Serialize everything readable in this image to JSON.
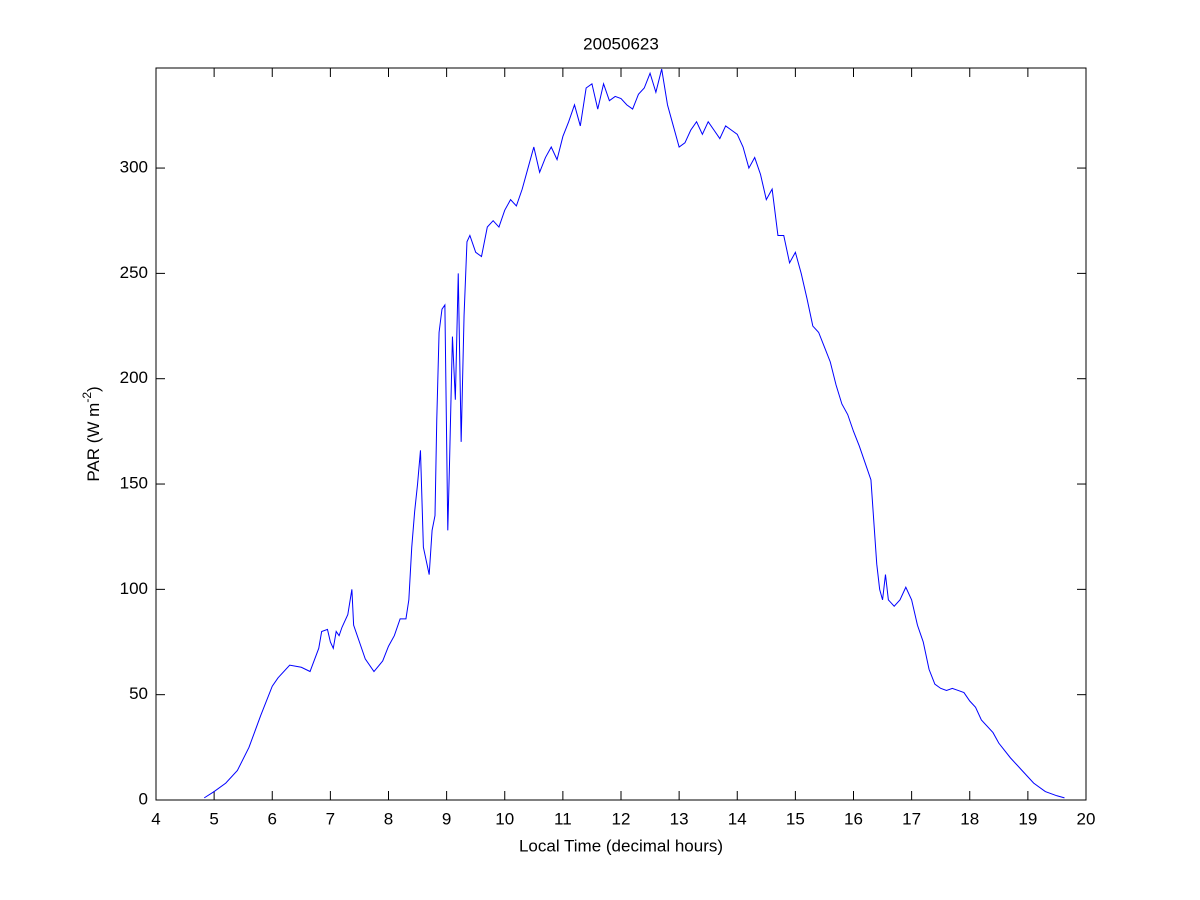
{
  "chart_data": {
    "type": "line",
    "title": "20050623",
    "x_label": "Local Time (decimal hours)",
    "y_label": [
      "PAR (W m",
      "-2",
      ")"
    ],
    "xlim": [
      4,
      20
    ],
    "xticks": [
      4,
      5,
      6,
      7,
      8,
      9,
      10,
      11,
      12,
      13,
      14,
      15,
      16,
      17,
      18,
      19,
      20
    ],
    "ylim": [
      0,
      347.5
    ],
    "yticks": [
      0,
      50,
      100,
      150,
      200,
      250,
      300
    ],
    "grid": false,
    "series": [
      {
        "color": "#0000ff",
        "x": [
          4.83,
          5.0,
          5.2,
          5.4,
          5.6,
          5.8,
          6.0,
          6.1,
          6.3,
          6.5,
          6.65,
          6.8,
          6.85,
          6.95,
          7.0,
          7.05,
          7.1,
          7.15,
          7.2,
          7.3,
          7.37,
          7.4,
          7.5,
          7.6,
          7.75,
          7.9,
          8.0,
          8.1,
          8.2,
          8.3,
          8.35,
          8.4,
          8.45,
          8.5,
          8.55,
          8.6,
          8.7,
          8.75,
          8.8,
          8.83,
          8.87,
          8.92,
          8.97,
          9.02,
          9.05,
          9.1,
          9.15,
          9.2,
          9.25,
          9.3,
          9.35,
          9.4,
          9.5,
          9.6,
          9.7,
          9.8,
          9.9,
          10.0,
          10.1,
          10.2,
          10.3,
          10.4,
          10.5,
          10.6,
          10.7,
          10.8,
          10.9,
          11.0,
          11.1,
          11.2,
          11.3,
          11.4,
          11.5,
          11.6,
          11.7,
          11.8,
          11.9,
          12.0,
          12.1,
          12.2,
          12.3,
          12.4,
          12.5,
          12.6,
          12.7,
          12.8,
          12.9,
          13.0,
          13.1,
          13.2,
          13.3,
          13.4,
          13.5,
          13.6,
          13.7,
          13.8,
          13.9,
          14.0,
          14.1,
          14.2,
          14.3,
          14.4,
          14.5,
          14.6,
          14.7,
          14.8,
          14.9,
          15.0,
          15.1,
          15.2,
          15.3,
          15.4,
          15.5,
          15.6,
          15.7,
          15.8,
          15.9,
          16.0,
          16.1,
          16.2,
          16.3,
          16.4,
          16.45,
          16.5,
          16.55,
          16.6,
          16.7,
          16.8,
          16.9,
          17.0,
          17.1,
          17.2,
          17.3,
          17.4,
          17.5,
          17.6,
          17.7,
          17.8,
          17.9,
          18.0,
          18.1,
          18.2,
          18.4,
          18.5,
          18.7,
          18.9,
          19.1,
          19.3,
          19.5,
          19.63
        ],
        "values": [
          1,
          4,
          8,
          14,
          25,
          40,
          54,
          58,
          64,
          63,
          61,
          72,
          80,
          81,
          75,
          72,
          80,
          78,
          82,
          88,
          100,
          83,
          75,
          67,
          61,
          66,
          73,
          78,
          86,
          86,
          95,
          120,
          137,
          150,
          166,
          120,
          107,
          128,
          135,
          180,
          222,
          233,
          235,
          128,
          160,
          220,
          190,
          250,
          170,
          230,
          265,
          268,
          260,
          258,
          272,
          275,
          272,
          280,
          285,
          282,
          290,
          300,
          310,
          298,
          305,
          310,
          304,
          315,
          322,
          330,
          320,
          338,
          340,
          328,
          340,
          332,
          334,
          333,
          330,
          328,
          335,
          338,
          345,
          336,
          347,
          330,
          320,
          310,
          312,
          318,
          322,
          316,
          322,
          318,
          314,
          320,
          318,
          316,
          310,
          300,
          305,
          297,
          285,
          290,
          268,
          268,
          255,
          260,
          250,
          238,
          225,
          222,
          215,
          208,
          197,
          188,
          183,
          175,
          168,
          160,
          152,
          112,
          100,
          95,
          107,
          95,
          92,
          95,
          101,
          95,
          83,
          75,
          62,
          55,
          53,
          52,
          53,
          52,
          51,
          47,
          44,
          38,
          32,
          27,
          20,
          14,
          8,
          4,
          2,
          1
        ]
      }
    ]
  }
}
